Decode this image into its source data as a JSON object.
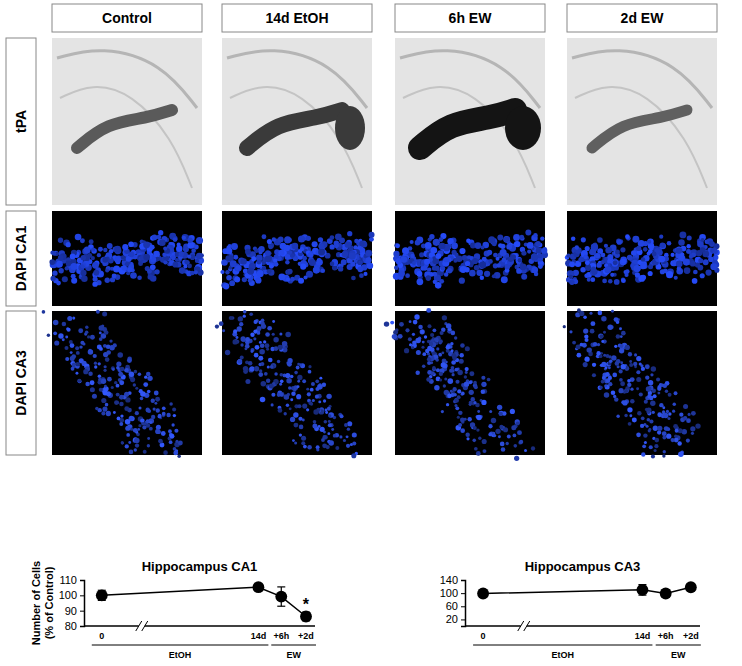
{
  "panels": {
    "columns": [
      "Control",
      "14d EtOH",
      "6h EW",
      "2d EW"
    ],
    "rows": [
      "tPA",
      "DAPI CA1",
      "DAPI CA3"
    ]
  },
  "chart_data": [
    {
      "type": "line",
      "title": "Hippocampus CA1",
      "y_label": "Number of Cells\n(% of Control)",
      "categories": [
        "0",
        "14d",
        "+6h",
        "+2d"
      ],
      "x_groups": [
        {
          "label": "EtOH",
          "categories": [
            "0",
            "14d"
          ]
        },
        {
          "label": "EW",
          "categories": [
            "+6h",
            "+2d"
          ]
        }
      ],
      "values": [
        100,
        105.3,
        99.2,
        86.2
      ],
      "errors": [
        3.3,
        1.5,
        6.3,
        2.8
      ],
      "annotations": [
        {
          "text": "*",
          "category": "+2d"
        }
      ],
      "color": "#000000",
      "marker": "circle",
      "line_style": "solid",
      "grid": false,
      "ylim": [
        80,
        110
      ],
      "yticks": [
        80,
        90,
        100,
        110
      ]
    },
    {
      "type": "line",
      "title": "Hippocampus CA3",
      "categories": [
        "0",
        "14d",
        "+6h",
        "+2d"
      ],
      "x_groups": [
        {
          "label": "EtOH",
          "categories": [
            "0",
            "14d"
          ]
        },
        {
          "label": "EW",
          "categories": [
            "+6h",
            "+2d"
          ]
        }
      ],
      "values": [
        99,
        110,
        99,
        118
      ],
      "errors": [
        10,
        16,
        11,
        10
      ],
      "color": "#000000",
      "marker": "circle",
      "line_style": "solid",
      "grid": false,
      "ylim": [
        0,
        140
      ],
      "yticks": [
        20,
        60,
        100,
        140
      ]
    }
  ]
}
